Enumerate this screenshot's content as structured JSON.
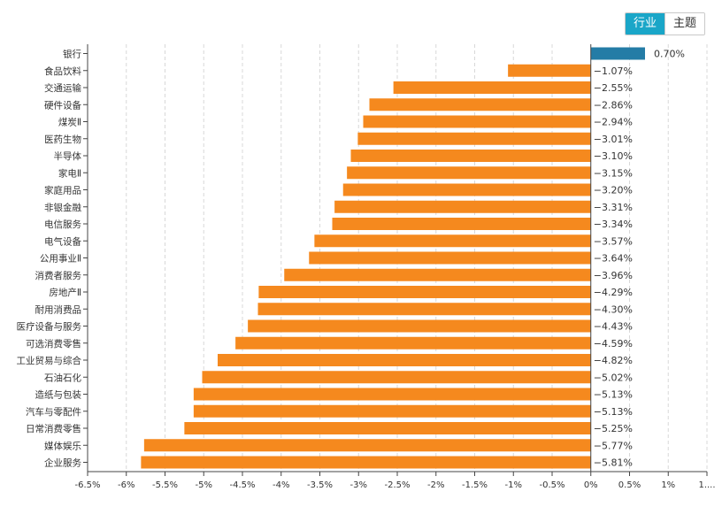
{
  "tabs": {
    "industry": "行业",
    "theme": "主题",
    "active": "industry"
  },
  "colors": {
    "negative": "#f5891e",
    "positive": "#247ca6",
    "grid": "#d8d8d8",
    "axis": "#444444",
    "tab_active": "#1aa6c8"
  },
  "chart_data": {
    "type": "bar",
    "orientation": "horizontal",
    "title": "",
    "xlabel": "",
    "ylabel": "",
    "xlim": [
      -6.5,
      1.5
    ],
    "value_suffix": "%",
    "grid": "vertical dashed",
    "categories": [
      "银行",
      "食品饮料",
      "交通运输",
      "硬件设备",
      "煤炭Ⅱ",
      "医药生物",
      "半导体",
      "家电Ⅱ",
      "家庭用品",
      "非银金融",
      "电信服务",
      "电气设备",
      "公用事业Ⅱ",
      "消费者服务",
      "房地产Ⅱ",
      "耐用消费品",
      "医疗设备与服务",
      "可选消费零售",
      "工业贸易与综合",
      "石油石化",
      "造纸与包装",
      "汽车与零配件",
      "日常消费零售",
      "媒体娱乐",
      "企业服务"
    ],
    "values": [
      0.7,
      -1.07,
      -2.55,
      -2.86,
      -2.94,
      -3.01,
      -3.1,
      -3.15,
      -3.2,
      -3.31,
      -3.34,
      -3.57,
      -3.64,
      -3.96,
      -4.29,
      -4.3,
      -4.43,
      -4.59,
      -4.82,
      -5.02,
      -5.13,
      -5.13,
      -5.25,
      -5.77,
      -5.81
    ],
    "value_labels": [
      "0.70%",
      "−1.07%",
      "−2.55%",
      "−2.86%",
      "−2.94%",
      "−3.01%",
      "−3.10%",
      "−3.15%",
      "−3.20%",
      "−3.31%",
      "−3.34%",
      "−3.57%",
      "−3.64%",
      "−3.96%",
      "−4.29%",
      "−4.30%",
      "−4.43%",
      "−4.59%",
      "−4.82%",
      "−5.02%",
      "−5.13%",
      "−5.13%",
      "−5.25%",
      "−5.77%",
      "−5.81%"
    ],
    "x_ticks": [
      -6.5,
      -6,
      -5.5,
      -5,
      -4.5,
      -4,
      -3.5,
      -3,
      -2.5,
      -2,
      -1.5,
      -1,
      -0.5,
      0,
      0.5,
      1,
      1.5
    ],
    "x_tick_labels": [
      "-6.5%",
      "-6%",
      "-5.5%",
      "-5%",
      "-4.5%",
      "-4%",
      "-3.5%",
      "-3%",
      "-2.5%",
      "-2%",
      "-1.5%",
      "-1%",
      "-0.5%",
      "0%",
      "0.5%",
      "1%",
      "1...."
    ]
  }
}
